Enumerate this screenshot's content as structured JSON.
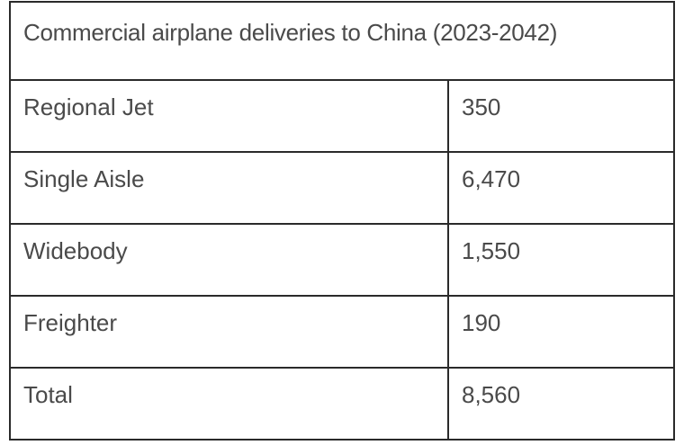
{
  "table": {
    "title": "Commercial airplane deliveries to China (2023-2042)",
    "rows": [
      [
        "Regional Jet",
        "350"
      ],
      [
        "Single Aisle",
        "6,470"
      ],
      [
        "Widebody",
        "1,550"
      ],
      [
        "Freighter",
        "190"
      ],
      [
        "Total",
        "8,560"
      ]
    ]
  }
}
